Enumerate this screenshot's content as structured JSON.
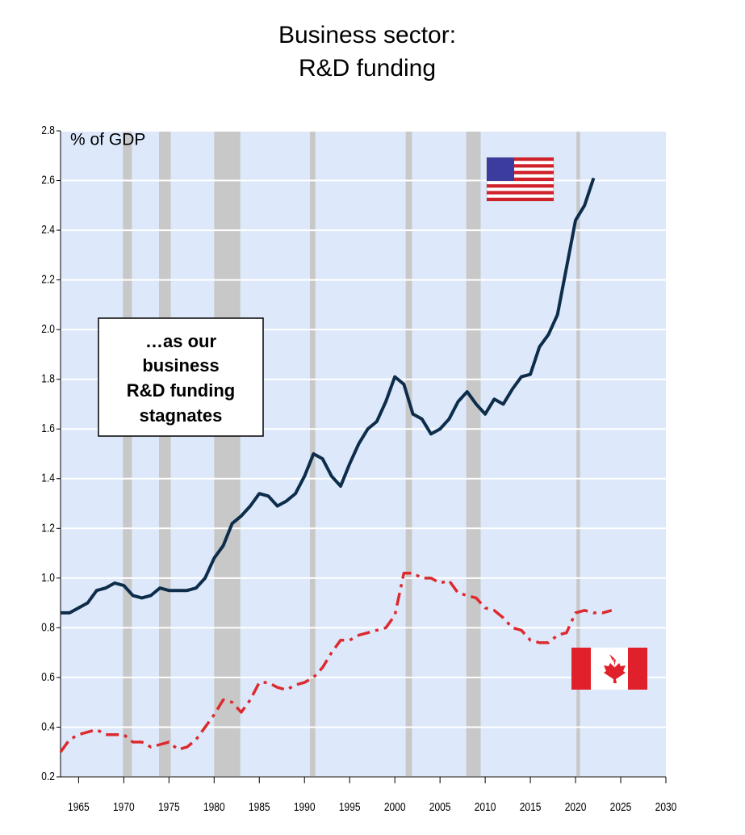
{
  "chart_data": {
    "type": "line",
    "title": [
      "Business sector:",
      "R&D funding"
    ],
    "ylabel": "% of GDP",
    "annotation": [
      "…as our",
      "business",
      "R&D funding",
      "stagnates"
    ],
    "xlim": [
      1963,
      2030
    ],
    "xticks": [
      1965,
      1970,
      1975,
      1980,
      1985,
      1990,
      1995,
      2000,
      2005,
      2010,
      2015,
      2020,
      2025,
      2030
    ],
    "ylim": [
      0.2,
      2.8
    ],
    "yticks": [
      0.2,
      0.4,
      0.6,
      0.8,
      {
        "value": 1,
        "label": "1.0"
      },
      1.2,
      1.4,
      1.6,
      1.8,
      {
        "value": 2,
        "label": "2.0"
      },
      2.2,
      2.4,
      2.6,
      2.8
    ],
    "grid": true,
    "recessions": [
      [
        1969.9,
        1970.9
      ],
      [
        1973.9,
        1975.2
      ],
      [
        1980.0,
        1982.9
      ],
      [
        1990.6,
        1991.2
      ],
      [
        2001.2,
        2001.9
      ],
      [
        2007.9,
        2009.5
      ],
      [
        2020.1,
        2020.5
      ]
    ],
    "series": [
      {
        "color": "#0d2d4b",
        "dash": "solid",
        "x": [
          1963,
          1964,
          1965,
          1966,
          1967,
          1968,
          1969,
          1970,
          1971,
          1972,
          1973,
          1974,
          1975,
          1976,
          1977,
          1978,
          1979,
          1980,
          1981,
          1982,
          1983,
          1984,
          1985,
          1986,
          1987,
          1988,
          1989,
          1990,
          1991,
          1992,
          1993,
          1994,
          1995,
          1996,
          1997,
          1998,
          1999,
          2000,
          2001,
          2002,
          2003,
          2004,
          2005,
          2006,
          2007,
          2008,
          2009,
          2010,
          2011,
          2012,
          2013,
          2014,
          2015,
          2016,
          2017,
          2018,
          2019,
          2020,
          2021,
          2022
        ],
        "values": [
          0.86,
          0.86,
          0.88,
          0.9,
          0.95,
          0.96,
          0.98,
          0.97,
          0.93,
          0.92,
          0.93,
          0.96,
          0.95,
          0.95,
          0.95,
          0.96,
          1.0,
          1.08,
          1.13,
          1.22,
          1.25,
          1.29,
          1.34,
          1.33,
          1.29,
          1.31,
          1.34,
          1.41,
          1.5,
          1.48,
          1.41,
          1.37,
          1.46,
          1.54,
          1.6,
          1.63,
          1.71,
          1.81,
          1.78,
          1.66,
          1.64,
          1.58,
          1.6,
          1.64,
          1.71,
          1.75,
          1.7,
          1.66,
          1.72,
          1.7,
          1.76,
          1.81,
          1.82,
          1.93,
          1.98,
          2.06,
          2.25,
          2.44,
          2.5,
          2.61
        ]
      },
      {
        "color": "#dc2a2e",
        "dash": "dashdot",
        "x": [
          1963,
          1964,
          1965,
          1966,
          1967,
          1968,
          1969,
          1970,
          1971,
          1972,
          1973,
          1974,
          1975,
          1976,
          1977,
          1978,
          1979,
          1980,
          1981,
          1982,
          1983,
          1984,
          1985,
          1986,
          1987,
          1988,
          1989,
          1990,
          1991,
          1992,
          1993,
          1994,
          1995,
          1996,
          1997,
          1998,
          1999,
          2000,
          2001,
          2002,
          2003,
          2004,
          2005,
          2006,
          2007,
          2008,
          2009,
          2010,
          2011,
          2012,
          2013,
          2014,
          2015,
          2016,
          2017,
          2018,
          2019,
          2020,
          2021,
          2022,
          2023,
          2024
        ],
        "values": [
          0.3,
          0.35,
          0.37,
          0.38,
          0.39,
          0.37,
          0.37,
          0.37,
          0.34,
          0.34,
          0.32,
          0.33,
          0.34,
          0.31,
          0.32,
          0.35,
          0.4,
          0.45,
          0.51,
          0.5,
          0.46,
          0.51,
          0.58,
          0.58,
          0.56,
          0.55,
          0.57,
          0.58,
          0.6,
          0.64,
          0.7,
          0.75,
          0.75,
          0.77,
          0.78,
          0.79,
          0.8,
          0.85,
          1.02,
          1.02,
          1.0,
          1.0,
          0.98,
          0.99,
          0.94,
          0.93,
          0.92,
          0.88,
          0.87,
          0.84,
          0.8,
          0.79,
          0.75,
          0.74,
          0.74,
          0.77,
          0.78,
          0.86,
          0.87,
          0.86,
          0.86,
          0.87
        ]
      }
    ]
  }
}
